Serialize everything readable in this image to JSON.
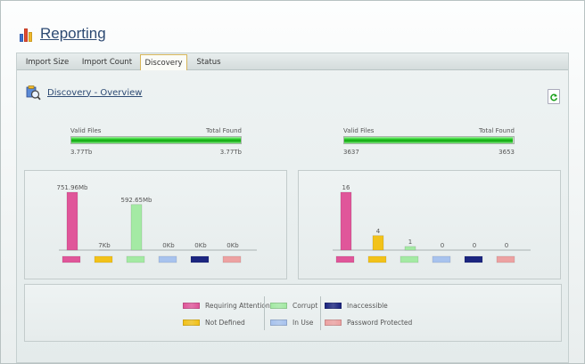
{
  "app": {
    "title": "Reporting",
    "icon": "bar-chart-icon"
  },
  "tabs": [
    {
      "label": "Import Size",
      "active": false
    },
    {
      "label": "Import Count",
      "active": false
    },
    {
      "label": "Discovery",
      "active": true
    },
    {
      "label": "Status",
      "active": false
    }
  ],
  "section": {
    "title": "Discovery - Overview",
    "icon": "discovery-magnifier-icon",
    "refresh_icon": "refresh-icon"
  },
  "progress": [
    {
      "left_label": "Valid Files",
      "right_label": "Total Found",
      "left_value": "3.77Tb",
      "right_value": "3.77Tb",
      "fill": 1.0
    },
    {
      "left_label": "Valid Files",
      "right_label": "Total Found",
      "left_value": "3637",
      "right_value": "3653",
      "fill": 0.9956
    }
  ],
  "colors": {
    "requiring_attention": "#e0569a",
    "not_defined": "#f2c21a",
    "corrupt": "#a4eaa4",
    "in_use": "#a8c3ee",
    "inaccessible": "#1c2680",
    "password_protected": "#eda2a2"
  },
  "chart_data": [
    {
      "type": "bar",
      "categories": [
        "Requiring Attention",
        "Not Defined",
        "Corrupt",
        "In Use",
        "Inaccessible",
        "Password Protected"
      ],
      "values": [
        751.96,
        0.007,
        592.65,
        0,
        0,
        0
      ],
      "unit": "Mb",
      "data_labels": [
        "751.96Mb",
        "7Kb",
        "592.65Mb",
        "0Kb",
        "0Kb",
        "0Kb"
      ],
      "colors": [
        "#e0569a",
        "#f2c21a",
        "#a4eaa4",
        "#a8c3ee",
        "#1c2680",
        "#eda2a2"
      ],
      "ylim": [
        0,
        751.96
      ],
      "grid": false
    },
    {
      "type": "bar",
      "categories": [
        "Requiring Attention",
        "Not Defined",
        "Corrupt",
        "In Use",
        "Inaccessible",
        "Password Protected"
      ],
      "values": [
        16,
        4,
        1,
        0,
        0,
        0
      ],
      "data_labels": [
        "16",
        "4",
        "1",
        "0",
        "0",
        "0"
      ],
      "colors": [
        "#e0569a",
        "#f2c21a",
        "#a4eaa4",
        "#a8c3ee",
        "#1c2680",
        "#eda2a2"
      ],
      "ylim": [
        0,
        16
      ],
      "grid": false
    }
  ],
  "legend": [
    {
      "label": "Requiring Attention",
      "color": "#e0569a"
    },
    {
      "label": "Not Defined",
      "color": "#f2c21a"
    },
    {
      "label": "Corrupt",
      "color": "#a4eaa4"
    },
    {
      "label": "In Use",
      "color": "#a8c3ee"
    },
    {
      "label": "Inaccessible",
      "color": "#1c2680"
    },
    {
      "label": "Password Protected",
      "color": "#eda2a2"
    }
  ]
}
